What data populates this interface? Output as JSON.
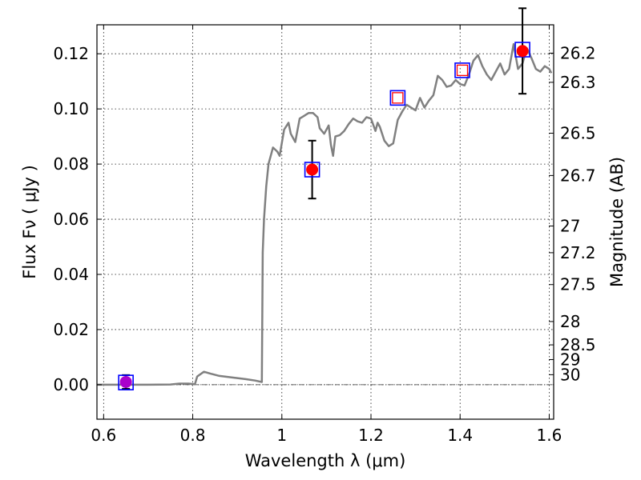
{
  "chart_data": {
    "type": "line",
    "title": "",
    "xlabel": "Wavelength  λ (μm)",
    "ylabel": "Flux  Fν  ( μJy )",
    "ylabel_right": "Magnitude (AB)",
    "xlim": [
      0.585,
      1.61
    ],
    "ylim": [
      -0.0125,
      0.1305
    ],
    "grid": true,
    "x_ticks": [
      0.6,
      0.8,
      1.0,
      1.2,
      1.4,
      1.6
    ],
    "x_tick_labels": [
      "0.6",
      "0.8",
      "1",
      "1.2",
      "1.4",
      "1.6"
    ],
    "y_ticks": [
      0.0,
      0.02,
      0.04,
      0.06,
      0.08,
      0.1,
      0.12
    ],
    "y_tick_labels": [
      "0.00",
      "0.02",
      "0.04",
      "0.06",
      "0.08",
      "0.10",
      "0.12"
    ],
    "right_axis": {
      "magnitude_ticks": [
        26.2,
        26.3,
        26.5,
        26.7,
        27,
        27.2,
        27.5,
        28,
        28.5,
        29,
        30
      ],
      "tick_labels": [
        "26.2",
        "26.3",
        "26.5",
        "26.7",
        "27",
        "27.2",
        "27.5",
        "28",
        "28.5",
        "29",
        "30"
      ]
    },
    "series": [
      {
        "kind": "model_spectrum",
        "color": "#808080",
        "x": [
          0.585,
          0.6,
          0.65,
          0.7,
          0.75,
          0.77,
          0.79,
          0.805,
          0.81,
          0.825,
          0.84,
          0.86,
          0.88,
          0.9,
          0.92,
          0.94,
          0.955,
          0.957,
          0.96,
          0.965,
          0.97,
          0.98,
          0.99,
          0.995,
          1.005,
          1.015,
          1.02,
          1.03,
          1.04,
          1.05,
          1.06,
          1.07,
          1.08,
          1.085,
          1.095,
          1.105,
          1.11,
          1.115,
          1.12,
          1.13,
          1.14,
          1.15,
          1.16,
          1.17,
          1.18,
          1.19,
          1.2,
          1.21,
          1.215,
          1.22,
          1.23,
          1.24,
          1.25,
          1.26,
          1.27,
          1.28,
          1.29,
          1.3,
          1.31,
          1.32,
          1.33,
          1.34,
          1.35,
          1.36,
          1.37,
          1.38,
          1.39,
          1.4,
          1.41,
          1.42,
          1.43,
          1.44,
          1.45,
          1.46,
          1.47,
          1.48,
          1.49,
          1.5,
          1.51,
          1.52,
          1.53,
          1.54,
          1.55,
          1.56,
          1.57,
          1.58,
          1.59,
          1.6,
          1.605
        ],
        "y": [
          0.0,
          0.0,
          0.0,
          0.0,
          0.0001,
          0.0004,
          0.0004,
          0.0002,
          0.003,
          0.0047,
          0.004,
          0.0032,
          0.0028,
          0.0024,
          0.002,
          0.0015,
          0.001,
          0.048,
          0.06,
          0.072,
          0.08,
          0.086,
          0.0845,
          0.083,
          0.0925,
          0.095,
          0.091,
          0.088,
          0.0965,
          0.0975,
          0.0985,
          0.0985,
          0.097,
          0.093,
          0.091,
          0.094,
          0.087,
          0.083,
          0.09,
          0.0905,
          0.092,
          0.0945,
          0.0965,
          0.0955,
          0.095,
          0.097,
          0.0965,
          0.092,
          0.095,
          0.0935,
          0.0885,
          0.0865,
          0.0875,
          0.096,
          0.099,
          0.1015,
          0.1005,
          0.0995,
          0.104,
          0.1005,
          0.103,
          0.105,
          0.112,
          0.1105,
          0.108,
          0.1085,
          0.1105,
          0.109,
          0.1085,
          0.1125,
          0.1175,
          0.1195,
          0.1155,
          0.1125,
          0.1105,
          0.1135,
          0.1165,
          0.1125,
          0.1145,
          0.1235,
          0.1145,
          0.1165,
          0.122,
          0.1185,
          0.1145,
          0.1135,
          0.1155,
          0.1145,
          0.113
        ]
      },
      {
        "kind": "model_photometry",
        "marker": "open_square",
        "color": "#0000ff",
        "x": [
          0.65,
          1.068,
          1.26,
          1.405,
          1.54
        ],
        "y": [
          0.0008,
          0.078,
          0.104,
          0.114,
          0.1215
        ]
      },
      {
        "kind": "observed_photometry",
        "marker": "filled_circle",
        "color": "#ff0000",
        "x": [
          1.068,
          1.54
        ],
        "y": [
          0.078,
          0.121
        ],
        "yerr": [
          0.0105,
          0.0155
        ]
      },
      {
        "kind": "upper_limit",
        "marker": "open_square",
        "color": "#ff0000",
        "x": [
          1.26,
          1.405
        ],
        "y": [
          0.104,
          0.114
        ]
      },
      {
        "kind": "nondetection",
        "marker": "filled_circle",
        "color": "#aa00cc",
        "x": [
          0.65
        ],
        "y": [
          0.001
        ],
        "yerr": [
          0.0025
        ]
      }
    ],
    "zero_line": true
  }
}
